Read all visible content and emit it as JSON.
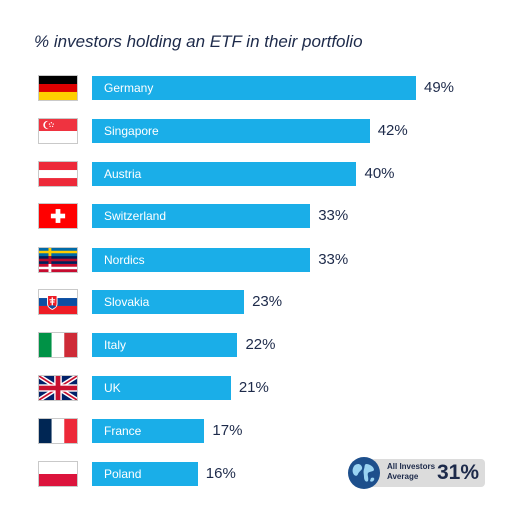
{
  "chart_data": {
    "type": "bar",
    "orientation": "horizontal",
    "title": "% investors holding an ETF in their portfolio",
    "categories": [
      "Germany",
      "Singapore",
      "Austria",
      "Switzerland",
      "Nordics",
      "Slovakia",
      "Italy",
      "UK",
      "France",
      "Poland"
    ],
    "values": [
      49,
      42,
      40,
      33,
      33,
      23,
      22,
      21,
      17,
      16
    ],
    "value_labels": [
      "49%",
      "42%",
      "40%",
      "33%",
      "33%",
      "23%",
      "22%",
      "21%",
      "17%",
      "16%"
    ],
    "flag_icons": [
      "germany-flag-icon",
      "singapore-flag-icon",
      "austria-flag-icon",
      "switzerland-flag-icon",
      "nordics-flag-icon",
      "slovakia-flag-icon",
      "italy-flag-icon",
      "uk-flag-icon",
      "france-flag-icon",
      "poland-flag-icon"
    ],
    "bar_color": "#1aaee8",
    "grid": false,
    "average": {
      "label_line1": "All Investors",
      "label_line2": "Average",
      "value": "31%",
      "icon": "globe-icon"
    }
  }
}
